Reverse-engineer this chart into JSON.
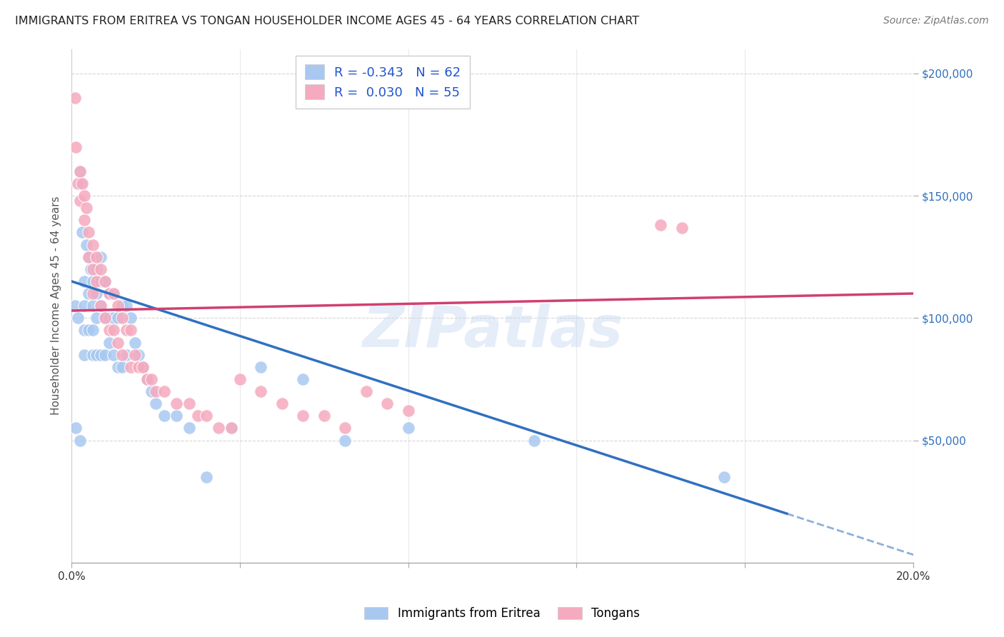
{
  "title": "IMMIGRANTS FROM ERITREA VS TONGAN HOUSEHOLDER INCOME AGES 45 - 64 YEARS CORRELATION CHART",
  "source": "Source: ZipAtlas.com",
  "ylabel": "Householder Income Ages 45 - 64 years",
  "legend_labels": [
    "Immigrants from Eritrea",
    "Tongans"
  ],
  "eritrea_R": -0.343,
  "eritrea_N": 62,
  "tongan_R": 0.03,
  "tongan_N": 55,
  "xlim": [
    0,
    0.2
  ],
  "ylim": [
    0,
    210000
  ],
  "yticks": [
    50000,
    100000,
    150000,
    200000
  ],
  "ytick_labels": [
    "$50,000",
    "$100,000",
    "$150,000",
    "$200,000"
  ],
  "xticks": [
    0.0,
    0.04,
    0.08,
    0.12,
    0.16,
    0.2
  ],
  "xtick_labels": [
    "0.0%",
    "",
    "",
    "",
    "",
    "20.0%"
  ],
  "eritrea_color": "#a8c8f0",
  "tongan_color": "#f5aabf",
  "eritrea_line_color": "#3070c0",
  "tongan_line_color": "#d04070",
  "watermark": "ZIPatlas",
  "background_color": "#ffffff",
  "eritrea_x": [
    0.0008,
    0.001,
    0.0015,
    0.002,
    0.002,
    0.0022,
    0.0025,
    0.003,
    0.003,
    0.003,
    0.003,
    0.0035,
    0.004,
    0.004,
    0.004,
    0.0045,
    0.005,
    0.005,
    0.005,
    0.005,
    0.0055,
    0.006,
    0.006,
    0.006,
    0.006,
    0.007,
    0.007,
    0.007,
    0.007,
    0.008,
    0.008,
    0.008,
    0.009,
    0.009,
    0.009,
    0.01,
    0.01,
    0.01,
    0.011,
    0.011,
    0.012,
    0.012,
    0.013,
    0.013,
    0.014,
    0.015,
    0.016,
    0.017,
    0.018,
    0.019,
    0.02,
    0.022,
    0.025,
    0.028,
    0.032,
    0.038,
    0.045,
    0.055,
    0.065,
    0.08,
    0.11,
    0.155
  ],
  "eritrea_y": [
    105000,
    55000,
    100000,
    160000,
    50000,
    155000,
    135000,
    115000,
    95000,
    105000,
    85000,
    130000,
    125000,
    110000,
    95000,
    120000,
    115000,
    105000,
    95000,
    85000,
    110000,
    120000,
    110000,
    100000,
    85000,
    125000,
    115000,
    105000,
    85000,
    115000,
    100000,
    85000,
    110000,
    100000,
    90000,
    110000,
    100000,
    85000,
    100000,
    80000,
    105000,
    80000,
    105000,
    85000,
    100000,
    90000,
    85000,
    80000,
    75000,
    70000,
    65000,
    60000,
    60000,
    55000,
    35000,
    55000,
    80000,
    75000,
    50000,
    55000,
    50000,
    35000
  ],
  "tongan_x": [
    0.0008,
    0.001,
    0.0015,
    0.002,
    0.002,
    0.0025,
    0.003,
    0.003,
    0.0035,
    0.004,
    0.004,
    0.005,
    0.005,
    0.005,
    0.006,
    0.006,
    0.007,
    0.007,
    0.008,
    0.008,
    0.009,
    0.009,
    0.01,
    0.01,
    0.011,
    0.011,
    0.012,
    0.012,
    0.013,
    0.014,
    0.014,
    0.015,
    0.016,
    0.017,
    0.018,
    0.019,
    0.02,
    0.022,
    0.025,
    0.028,
    0.03,
    0.032,
    0.035,
    0.038,
    0.04,
    0.045,
    0.05,
    0.055,
    0.06,
    0.065,
    0.07,
    0.075,
    0.08,
    0.14,
    0.145
  ],
  "tongan_y": [
    190000,
    170000,
    155000,
    160000,
    148000,
    155000,
    150000,
    140000,
    145000,
    135000,
    125000,
    130000,
    120000,
    110000,
    125000,
    115000,
    120000,
    105000,
    115000,
    100000,
    110000,
    95000,
    110000,
    95000,
    105000,
    90000,
    100000,
    85000,
    95000,
    95000,
    80000,
    85000,
    80000,
    80000,
    75000,
    75000,
    70000,
    70000,
    65000,
    65000,
    60000,
    60000,
    55000,
    55000,
    75000,
    70000,
    65000,
    60000,
    60000,
    55000,
    70000,
    65000,
    62000,
    138000,
    137000
  ]
}
